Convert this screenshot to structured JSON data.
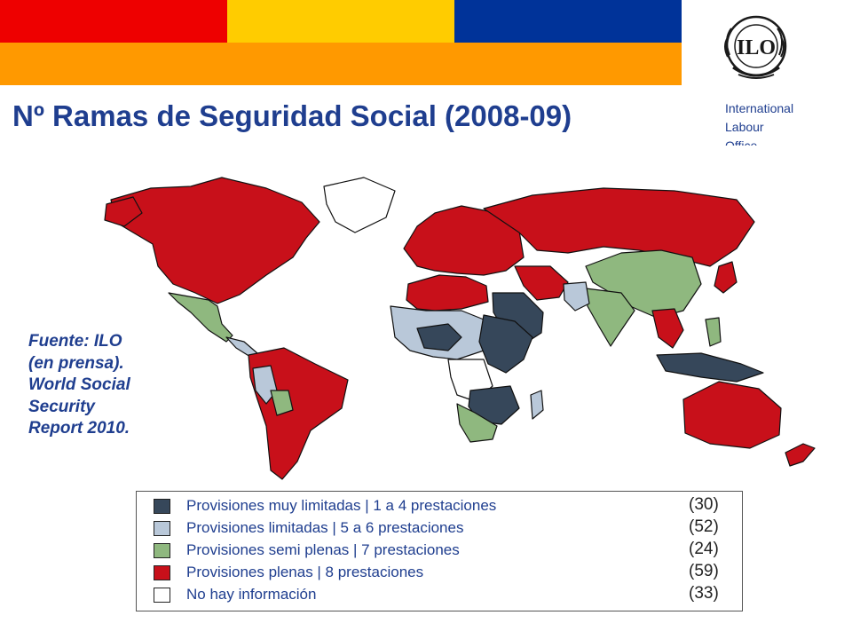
{
  "header": {
    "colors": [
      "#ee0000",
      "#ffcc00",
      "#003399",
      "#ff9900"
    ]
  },
  "title": "Nº Ramas de Seguridad Social (2008-09)",
  "organization": {
    "logo_text": "ILO",
    "name_lines": [
      "International",
      "Labour",
      "Office"
    ]
  },
  "source": {
    "lines": [
      "Fuente: ILO",
      "(en prensa).",
      "World Social",
      "Security",
      "Report 2010."
    ]
  },
  "legend": {
    "items": [
      {
        "label": "Provisiones muy limitadas | 1 a 4 prestaciones",
        "count": "(30)",
        "color": "#36475a"
      },
      {
        "label": "Provisiones limitadas | 5 a 6 prestaciones",
        "count": "(52)",
        "color": "#b9c8d9"
      },
      {
        "label": "Provisiones semi plenas | 7 prestaciones",
        "count": "(24)",
        "color": "#8fb87f"
      },
      {
        "label": "Provisiones plenas | 8 prestaciones",
        "count": "(59)",
        "color": "#c8101a"
      },
      {
        "label": "No hay información",
        "count": "(33)",
        "color": "#ffffff"
      }
    ]
  }
}
